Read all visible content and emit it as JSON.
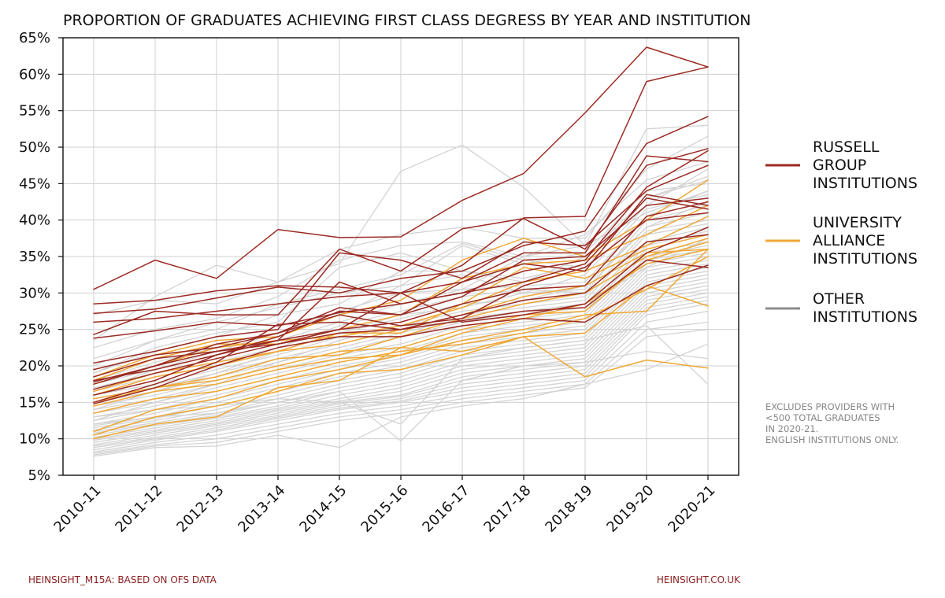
{
  "chart_data": {
    "type": "line",
    "title": "PROPORTION OF GRADUATES ACHIEVING FIRST CLASS DEGRESS BY YEAR AND INSTITUTION",
    "xlabel": "",
    "ylabel": "",
    "categories": [
      "2010-11",
      "2011-12",
      "2012-13",
      "2013-14",
      "2014-15",
      "2015-16",
      "2016-17",
      "2017-18",
      "2018-19",
      "2019-20",
      "2020-21"
    ],
    "y_ticks": [
      "5%",
      "10%",
      "15%",
      "20%",
      "25%",
      "30%",
      "35%",
      "40%",
      "45%",
      "50%",
      "55%",
      "60%",
      "65%"
    ],
    "ylim": [
      5,
      65
    ],
    "grid": true,
    "legend_position": "right",
    "legend": [
      {
        "label": "RUSSELL GROUP INSTITUTIONS",
        "lines": [
          "RUSSELL",
          "GROUP",
          "INSTITUTIONS"
        ],
        "color": "#9b2a22"
      },
      {
        "label": "UNIVERSITY ALLIANCE INSTITUTIONS",
        "lines": [
          "UNIVERSITY",
          "ALLIANCE",
          "INSTITUTIONS"
        ],
        "color": "#f0a834"
      },
      {
        "label": "OTHER INSTITUTIONS",
        "lines": [
          "OTHER",
          "INSTITUTIONS"
        ],
        "color": "#8c8c8c"
      }
    ],
    "note": [
      "EXCLUDES PROVIDERS WITH",
      "<500 TOTAL GRADUATES",
      "IN 2020-21.",
      "ENGLISH INSTITUTIONS ONLY."
    ],
    "colors": {
      "russell": "#9b2a22",
      "alliance": "#f0a834",
      "other": "#d3d3d3"
    },
    "series": {
      "russell": [
        {
          "values": [
            30.5,
            34.5,
            32.0,
            38.7,
            37.6,
            37.7,
            42.7,
            46.4,
            54.7,
            63.7,
            61.0
          ]
        },
        {
          "values": [
            28.5,
            29.0,
            30.3,
            31.0,
            30.8,
            30.0,
            33.8,
            40.3,
            40.5,
            59.0,
            61.0
          ]
        },
        {
          "values": [
            27.2,
            27.8,
            29.3,
            30.8,
            30.0,
            32.0,
            33.0,
            36.5,
            38.5,
            50.5,
            54.2
          ]
        },
        {
          "values": [
            26.0,
            26.5,
            27.5,
            28.5,
            29.5,
            30.0,
            31.5,
            35.5,
            35.5,
            48.8,
            48.0
          ]
        },
        {
          "values": [
            24.3,
            27.5,
            27.0,
            27.0,
            36.0,
            33.0,
            38.8,
            40.2,
            36.0,
            47.5,
            49.8
          ]
        },
        {
          "values": [
            23.8,
            24.8,
            26.0,
            25.5,
            27.3,
            28.5,
            30.0,
            33.0,
            34.5,
            44.5,
            49.5
          ]
        },
        {
          "values": [
            20.4,
            22.0,
            24.0,
            25.0,
            35.5,
            34.5,
            32.0,
            37.0,
            36.5,
            44.0,
            47.5
          ]
        },
        {
          "values": [
            19.5,
            21.5,
            22.5,
            24.5,
            28.0,
            27.0,
            31.5,
            34.0,
            33.0,
            43.5,
            42.0
          ]
        },
        {
          "values": [
            18.5,
            21.0,
            22.0,
            23.5,
            31.5,
            28.5,
            30.0,
            31.5,
            34.0,
            43.0,
            41.5
          ]
        },
        {
          "values": [
            18.0,
            19.5,
            21.5,
            24.0,
            27.5,
            27.0,
            29.5,
            34.5,
            35.0,
            42.0,
            43.0
          ]
        },
        {
          "values": [
            17.8,
            20.0,
            23.0,
            24.5,
            27.0,
            25.5,
            26.5,
            31.0,
            33.5,
            40.0,
            41.0
          ]
        },
        {
          "values": [
            17.5,
            20.0,
            22.0,
            23.0,
            25.0,
            26.0,
            28.5,
            30.5,
            31.0,
            40.5,
            42.5
          ]
        },
        {
          "values": [
            16.8,
            19.0,
            21.0,
            23.0,
            24.5,
            25.0,
            27.0,
            29.0,
            30.0,
            37.0,
            38.0
          ]
        },
        {
          "values": [
            16.0,
            18.0,
            21.5,
            23.5,
            25.0,
            30.0,
            26.0,
            27.0,
            28.5,
            35.5,
            39.0
          ]
        },
        {
          "values": [
            15.0,
            17.5,
            20.5,
            25.7,
            26.0,
            25.0,
            26.2,
            27.5,
            28.0,
            34.5,
            33.5
          ]
        },
        {
          "values": [
            14.8,
            17.0,
            20.0,
            22.5,
            24.0,
            24.0,
            25.5,
            26.5,
            26.0,
            31.0,
            33.8
          ]
        }
      ],
      "alliance": [
        {
          "values": [
            18.5,
            21.5,
            23.5,
            24.0,
            27.0,
            29.0,
            34.5,
            37.5,
            35.0,
            40.0,
            45.5
          ]
        },
        {
          "values": [
            18.0,
            21.0,
            23.0,
            23.0,
            25.0,
            27.0,
            32.0,
            34.0,
            34.5,
            38.0,
            42.0
          ]
        },
        {
          "values": [
            17.5,
            20.0,
            22.5,
            23.5,
            24.0,
            25.5,
            28.0,
            31.5,
            33.0,
            36.5,
            40.5
          ]
        },
        {
          "values": [
            16.5,
            19.0,
            20.5,
            22.0,
            24.5,
            24.5,
            28.5,
            33.5,
            32.0,
            36.0,
            38.0
          ]
        },
        {
          "values": [
            16.0,
            18.5,
            20.0,
            22.0,
            23.0,
            25.0,
            27.0,
            29.5,
            31.0,
            35.5,
            36.0
          ]
        },
        {
          "values": [
            15.5,
            17.0,
            18.5,
            21.0,
            21.5,
            24.0,
            26.5,
            28.5,
            30.0,
            35.0,
            37.5
          ]
        },
        {
          "values": [
            15.0,
            17.0,
            18.0,
            20.0,
            22.0,
            22.5,
            25.0,
            27.0,
            27.5,
            34.5,
            37.0
          ]
        },
        {
          "values": [
            14.5,
            16.5,
            17.5,
            19.5,
            21.0,
            21.5,
            24.5,
            26.5,
            28.5,
            34.0,
            36.0
          ]
        },
        {
          "values": [
            13.5,
            15.5,
            16.5,
            18.5,
            20.5,
            22.0,
            23.0,
            24.5,
            26.5,
            30.5,
            35.0
          ]
        },
        {
          "values": [
            11.0,
            14.0,
            15.5,
            18.0,
            19.5,
            21.5,
            23.5,
            25.0,
            27.0,
            27.5,
            36.0
          ]
        },
        {
          "values": [
            10.5,
            13.0,
            14.5,
            16.5,
            19.0,
            19.5,
            21.5,
            24.0,
            24.5,
            31.0,
            28.2
          ]
        },
        {
          "values": [
            10.0,
            12.0,
            13.0,
            17.0,
            18.0,
            22.5,
            22.0,
            24.0,
            18.5,
            20.8,
            19.7
          ]
        }
      ],
      "other": [
        {
          "values": [
            23.5,
            29.5,
            33.8,
            31.5,
            34.0,
            46.7,
            50.3,
            44.5,
            36.5,
            52.5,
            53.0
          ]
        },
        {
          "values": [
            27.0,
            29.0,
            28.5,
            31.5,
            36.0,
            38.0,
            39.0,
            37.5,
            37.5,
            47.0,
            51.5
          ]
        },
        {
          "values": [
            22.5,
            25.0,
            26.5,
            29.5,
            34.5,
            36.5,
            37.0,
            35.0,
            38.0,
            45.5,
            48.0
          ]
        },
        {
          "values": [
            20.0,
            23.5,
            26.0,
            28.0,
            30.0,
            31.0,
            36.5,
            34.0,
            35.5,
            44.0,
            45.0
          ]
        },
        {
          "values": [
            19.0,
            22.0,
            24.0,
            27.0,
            28.5,
            33.0,
            33.0,
            32.0,
            34.0,
            43.0,
            46.0
          ]
        },
        {
          "values": [
            18.0,
            20.5,
            22.5,
            24.5,
            27.0,
            31.0,
            32.5,
            30.0,
            32.5,
            41.5,
            43.5
          ]
        },
        {
          "values": [
            17.5,
            19.5,
            21.5,
            23.5,
            26.0,
            28.5,
            30.5,
            31.0,
            31.5,
            40.5,
            44.0
          ]
        },
        {
          "values": [
            17.0,
            19.0,
            20.5,
            22.5,
            25.5,
            27.5,
            29.5,
            30.5,
            30.0,
            40.0,
            42.0
          ]
        },
        {
          "values": [
            16.5,
            18.5,
            20.0,
            22.0,
            24.5,
            26.5,
            28.5,
            29.0,
            31.0,
            39.0,
            41.0
          ]
        },
        {
          "values": [
            16.0,
            17.5,
            19.5,
            21.5,
            24.0,
            25.5,
            27.5,
            28.5,
            29.5,
            38.5,
            40.0
          ]
        },
        {
          "values": [
            15.5,
            17.0,
            19.0,
            21.0,
            23.0,
            25.0,
            27.0,
            28.0,
            29.0,
            38.0,
            39.5
          ]
        },
        {
          "values": [
            15.0,
            16.5,
            18.5,
            20.5,
            22.5,
            24.5,
            26.5,
            27.5,
            28.5,
            37.0,
            39.0
          ]
        },
        {
          "values": [
            14.5,
            16.0,
            18.0,
            20.0,
            22.0,
            24.0,
            26.0,
            27.0,
            28.0,
            36.5,
            38.5
          ]
        },
        {
          "values": [
            14.0,
            15.5,
            17.5,
            19.5,
            21.5,
            23.0,
            25.5,
            26.5,
            27.5,
            36.0,
            38.0
          ]
        },
        {
          "values": [
            13.5,
            15.0,
            17.0,
            19.0,
            21.0,
            22.5,
            25.0,
            26.0,
            27.0,
            35.5,
            37.0
          ]
        },
        {
          "values": [
            13.0,
            14.5,
            16.5,
            18.5,
            20.5,
            22.0,
            24.5,
            25.5,
            26.5,
            35.0,
            36.5
          ]
        },
        {
          "values": [
            12.5,
            14.0,
            16.0,
            18.0,
            20.0,
            21.5,
            24.0,
            25.0,
            26.0,
            34.5,
            36.0
          ]
        },
        {
          "values": [
            12.0,
            13.5,
            15.5,
            17.5,
            19.5,
            21.0,
            23.5,
            24.5,
            25.5,
            34.0,
            35.5
          ]
        },
        {
          "values": [
            11.8,
            13.0,
            15.0,
            17.0,
            19.0,
            20.5,
            23.0,
            24.0,
            25.0,
            33.5,
            35.0
          ]
        },
        {
          "values": [
            11.5,
            12.8,
            14.5,
            16.5,
            18.5,
            20.0,
            22.5,
            23.5,
            24.5,
            33.0,
            34.5
          ]
        },
        {
          "values": [
            11.2,
            12.5,
            14.0,
            16.0,
            18.0,
            19.5,
            22.0,
            23.0,
            24.0,
            32.5,
            34.0
          ]
        },
        {
          "values": [
            11.0,
            12.2,
            13.5,
            15.5,
            17.5,
            19.0,
            21.5,
            22.5,
            23.5,
            32.0,
            33.5
          ]
        },
        {
          "values": [
            10.8,
            12.0,
            13.2,
            15.0,
            17.0,
            18.5,
            21.0,
            22.0,
            23.0,
            31.5,
            33.0
          ]
        },
        {
          "values": [
            10.5,
            11.8,
            13.0,
            14.5,
            16.5,
            18.0,
            20.5,
            21.5,
            22.5,
            31.0,
            32.5
          ]
        },
        {
          "values": [
            10.2,
            11.5,
            12.8,
            14.2,
            16.0,
            17.5,
            20.0,
            21.0,
            22.0,
            30.5,
            32.0
          ]
        },
        {
          "values": [
            10.0,
            11.2,
            12.5,
            14.0,
            15.5,
            17.0,
            19.5,
            20.5,
            21.5,
            30.0,
            31.5
          ]
        },
        {
          "values": [
            9.8,
            11.0,
            12.2,
            13.8,
            15.2,
            16.5,
            19.0,
            20.0,
            21.0,
            29.5,
            31.0
          ]
        },
        {
          "values": [
            9.5,
            10.8,
            12.0,
            13.5,
            15.0,
            16.0,
            18.5,
            19.5,
            20.5,
            29.0,
            30.5
          ]
        },
        {
          "values": [
            9.2,
            10.5,
            11.8,
            13.2,
            14.8,
            15.8,
            18.0,
            19.0,
            20.0,
            28.5,
            30.0
          ]
        },
        {
          "values": [
            9.0,
            10.2,
            11.5,
            13.0,
            14.5,
            15.5,
            17.5,
            18.5,
            19.5,
            28.0,
            29.5
          ]
        },
        {
          "values": [
            8.8,
            10.0,
            11.2,
            12.8,
            14.2,
            15.2,
            17.0,
            18.0,
            19.0,
            27.5,
            29.0
          ]
        },
        {
          "values": [
            8.5,
            9.8,
            11.0,
            12.5,
            14.0,
            15.0,
            16.5,
            17.5,
            18.5,
            27.0,
            28.5
          ]
        },
        {
          "values": [
            8.2,
            9.5,
            10.5,
            12.0,
            13.5,
            14.5,
            16.0,
            17.0,
            18.0,
            26.0,
            27.5
          ]
        },
        {
          "values": [
            8.0,
            9.2,
            10.0,
            11.5,
            13.0,
            14.0,
            15.5,
            16.5,
            17.5,
            25.0,
            26.0
          ]
        },
        {
          "values": [
            7.8,
            9.0,
            9.5,
            11.0,
            12.5,
            13.5,
            15.0,
            16.0,
            17.0,
            24.0,
            25.0
          ]
        },
        {
          "values": [
            7.6,
            8.8,
            9.0,
            10.5,
            8.8,
            13.0,
            14.5,
            15.5,
            17.5,
            19.5,
            23.0
          ]
        },
        {
          "values": [
            12.0,
            13.0,
            13.5,
            15.0,
            16.5,
            9.7,
            18.0,
            20.0,
            20.5,
            22.0,
            21.0
          ]
        },
        {
          "values": [
            13.0,
            14.0,
            14.5,
            15.5,
            15.0,
            12.0,
            21.0,
            22.5,
            23.5,
            25.5,
            17.5
          ]
        },
        {
          "values": [
            19.0,
            22.5,
            24.5,
            26.0,
            33.5,
            35.5,
            33.0,
            31.5,
            35.0,
            43.0,
            45.5
          ]
        },
        {
          "values": [
            21.0,
            23.5,
            25.0,
            28.5,
            30.5,
            32.5,
            36.8,
            34.5,
            33.5,
            42.0,
            47.0
          ]
        },
        {
          "values": [
            16.5,
            19.5,
            22.0,
            24.5,
            27.5,
            30.0,
            30.5,
            35.0,
            36.5,
            41.0,
            44.0
          ]
        },
        {
          "values": [
            14.0,
            16.5,
            19.0,
            22.0,
            24.5,
            27.0,
            28.0,
            30.0,
            30.5,
            39.0,
            42.5
          ]
        },
        {
          "values": [
            12.5,
            15.0,
            17.5,
            20.5,
            23.5,
            25.5,
            26.0,
            27.5,
            28.5,
            33.5,
            37.5
          ]
        }
      ]
    }
  },
  "footer": {
    "source": "HEINSIGHT_M15A: BASED ON OFS DATA",
    "site": "HEINSIGHT.CO.UK"
  }
}
